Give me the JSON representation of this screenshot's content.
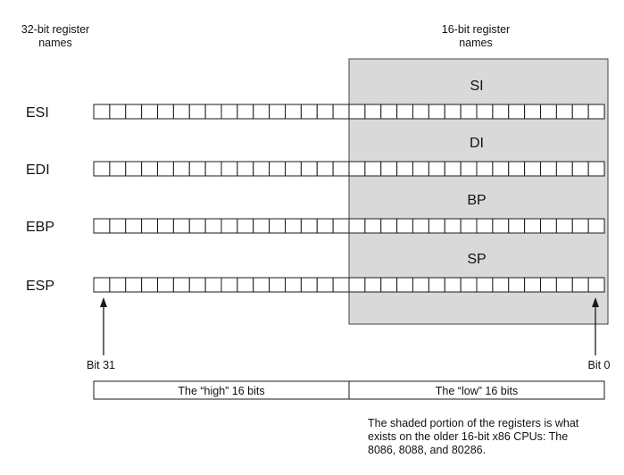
{
  "header": {
    "left_label": [
      "32-bit register",
      "names"
    ],
    "right_label": [
      "16-bit register",
      "names"
    ]
  },
  "registers": [
    {
      "name32": "ESI",
      "name16": "SI"
    },
    {
      "name32": "EDI",
      "name16": "DI"
    },
    {
      "name32": "EBP",
      "name16": "BP"
    },
    {
      "name32": "ESP",
      "name16": "SP"
    }
  ],
  "bits": {
    "total": 32,
    "low": 16
  },
  "bit_labels": {
    "high": "Bit 31",
    "low": "Bit 0"
  },
  "halves": {
    "high": "The “high” 16 bits",
    "low": "The “low” 16 bits"
  },
  "note": [
    "The shaded portion of the registers is what",
    "exists on the older 16-bit x86 CPUs: The",
    "8086, 8088, and 80286."
  ],
  "colors": {
    "shade": "#d9d9d9",
    "line": "#1a1a1a",
    "cell": "#ffffff"
  }
}
